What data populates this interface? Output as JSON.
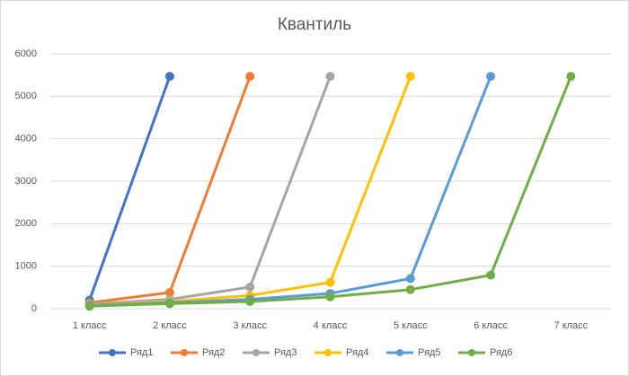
{
  "chart_data": {
    "type": "line",
    "title": "Квантиль",
    "categories": [
      "1 класс",
      "2 класс",
      "3 класс",
      "4 класс",
      "5 класс",
      "6 класс",
      "7 класс"
    ],
    "series": [
      {
        "name": "Ряд1",
        "color": "#4472c4",
        "values": [
          200,
          5470,
          null,
          null,
          null,
          null,
          null
        ]
      },
      {
        "name": "Ряд2",
        "color": "#ed7d31",
        "values": [
          140,
          380,
          5470,
          null,
          null,
          null,
          null
        ]
      },
      {
        "name": "Ряд3",
        "color": "#a5a5a5",
        "values": [
          110,
          220,
          510,
          5470,
          null,
          null,
          null
        ]
      },
      {
        "name": "Ряд4",
        "color": "#ffc000",
        "values": [
          90,
          170,
          310,
          620,
          5470,
          null,
          null
        ]
      },
      {
        "name": "Ряд5",
        "color": "#5b9bd5",
        "values": [
          80,
          140,
          220,
          360,
          710,
          5470,
          null
        ]
      },
      {
        "name": "Ряд6",
        "color": "#70ad47",
        "values": [
          60,
          120,
          170,
          280,
          450,
          790,
          5470
        ]
      }
    ],
    "ylim": [
      0,
      6000
    ],
    "yticks": [
      0,
      1000,
      2000,
      3000,
      4000,
      5000,
      6000
    ],
    "grid": true,
    "legend": "bottom"
  }
}
